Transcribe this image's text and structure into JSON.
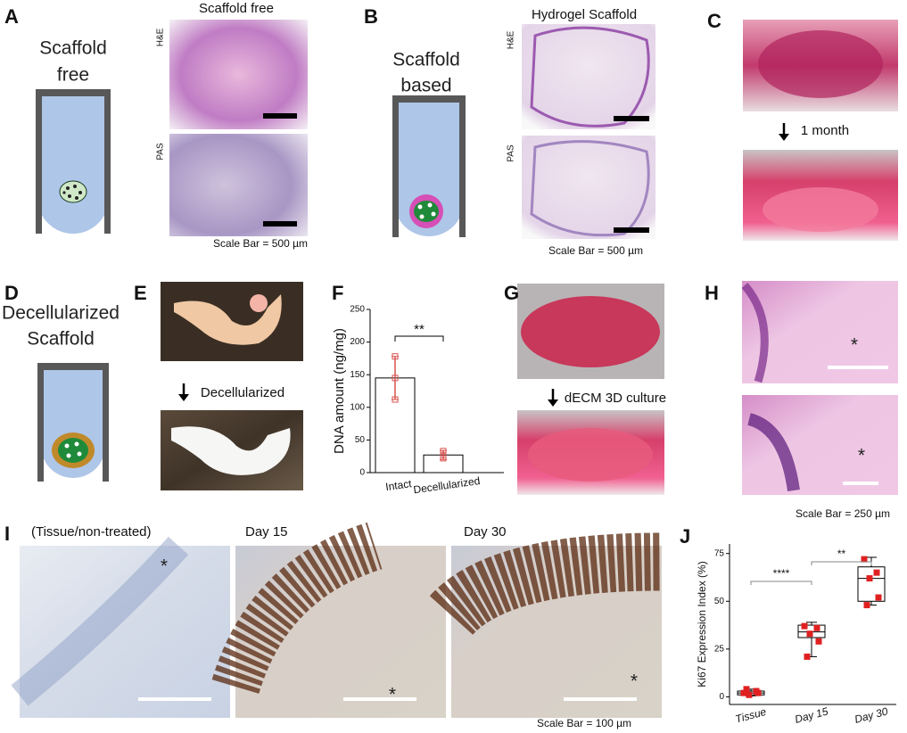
{
  "panels": {
    "A": {
      "letter": "A",
      "title": "Scaffold free",
      "diagram_text": [
        "Scaffold",
        "free"
      ],
      "stains": [
        "H&E",
        "PAS"
      ],
      "scale_bar": "Scale Bar = 500 µm"
    },
    "B": {
      "letter": "B",
      "title": "Hydrogel Scaffold",
      "diagram_text": [
        "Scaffold",
        "based"
      ],
      "stains": [
        "H&E",
        "PAS"
      ],
      "scale_bar": "Scale Bar = 500 µm"
    },
    "C": {
      "letter": "C",
      "arrow_text": "1 month"
    },
    "D": {
      "letter": "D",
      "diagram_text": [
        "Decellularized",
        "Scaffold"
      ]
    },
    "E": {
      "letter": "E",
      "arrow_text": "Decellularized"
    },
    "F": {
      "letter": "F"
    },
    "G": {
      "letter": "G",
      "arrow_text": "dECM 3D culture"
    },
    "H": {
      "letter": "H",
      "asterisk": "*",
      "scale_bar": "Scale Bar = 250 µm"
    },
    "I": {
      "letter": "I",
      "titles": [
        "(Tissue/non-treated)",
        "Day 15",
        "Day 30"
      ],
      "asterisk": "*",
      "scale_bar": "Scale Bar = 100 µm"
    },
    "J": {
      "letter": "J"
    }
  },
  "chart_data": [
    {
      "type": "bar",
      "y_label": "DNA amount (ng/mg)",
      "categories": [
        "Intact",
        "Decellularized"
      ],
      "values": [
        145,
        27
      ],
      "errors": [
        33,
        7
      ],
      "points": [
        [
          178,
          145,
          112
        ],
        [
          33,
          27,
          22
        ]
      ],
      "ylim": [
        0,
        250
      ],
      "yticks": [
        0,
        50,
        100,
        150,
        200,
        250
      ],
      "significance": "**",
      "color": "#ffffff",
      "error_color": "#d9534f"
    },
    {
      "type": "box",
      "y_label": "Ki67 Expression Index (%)",
      "categories": [
        "Tissue",
        "Day 15",
        "Day 30"
      ],
      "boxes": [
        {
          "low": 0.5,
          "q1": 1,
          "median": 2,
          "q3": 3,
          "high": 4
        },
        {
          "low": 21,
          "q1": 31,
          "median": 34,
          "q3": 37.5,
          "high": 39
        },
        {
          "low": 48,
          "q1": 50,
          "median": 62,
          "q3": 68,
          "high": 73
        }
      ],
      "points": [
        [
          2,
          3,
          1,
          2,
          4
        ],
        [
          37,
          36,
          33,
          29,
          21
        ],
        [
          72,
          65,
          62,
          52,
          48
        ]
      ],
      "ylim": [
        -4,
        80
      ],
      "yticks": [
        0,
        25,
        50,
        75
      ],
      "significance": [
        "****",
        "**"
      ],
      "point_color": "#e02020"
    }
  ]
}
